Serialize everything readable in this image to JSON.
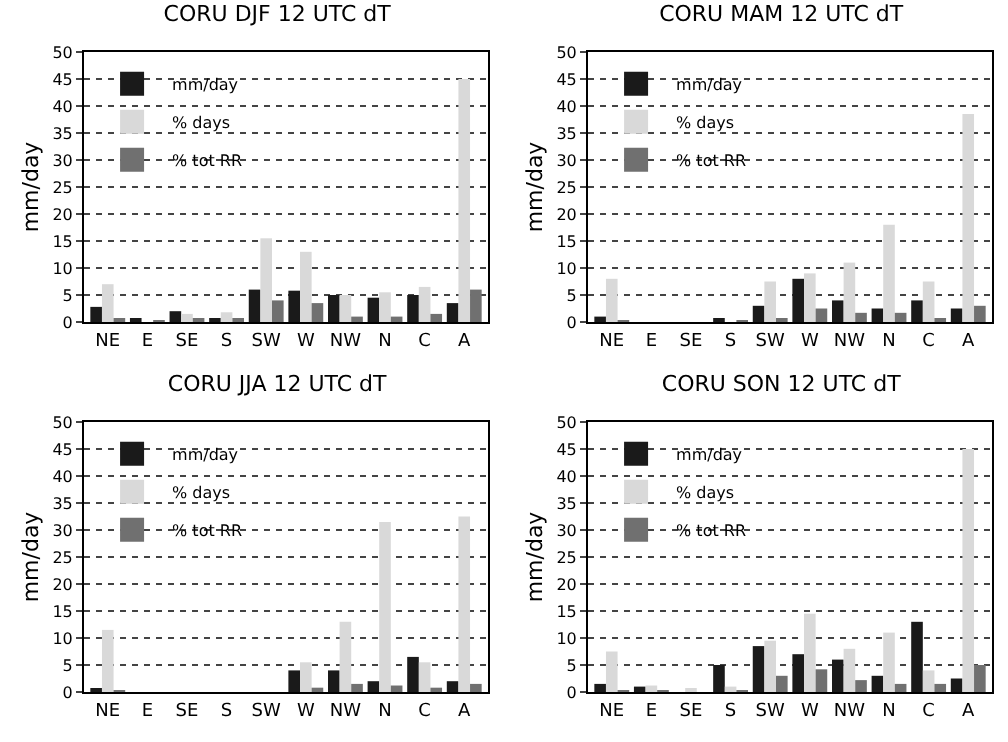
{
  "chart_data": [
    {
      "type": "bar",
      "title": "CORU DJF 12 UTC dT",
      "ylabel": "mm/day",
      "categories": [
        "NE",
        "E",
        "SE",
        "S",
        "SW",
        "W",
        "NW",
        "N",
        "C",
        "A"
      ],
      "series": [
        {
          "name": "mm/day",
          "color": "#1a1a1a",
          "values": [
            2.8,
            0.7,
            2,
            0.7,
            6,
            5.8,
            5,
            4.5,
            5,
            3.5
          ]
        },
        {
          "name": "% days",
          "color": "#d9d9d9",
          "values": [
            7,
            null,
            1.5,
            1.8,
            15.5,
            13,
            5,
            5.5,
            6.5,
            45
          ]
        },
        {
          "name": "% tot RR",
          "color": "#707070",
          "values": [
            0.7,
            0.3,
            0.5,
            0.7,
            4,
            3.5,
            1,
            1,
            1.5,
            6
          ]
        }
      ],
      "ylim": [
        0,
        50
      ],
      "yticks": [
        0,
        5,
        10,
        15,
        20,
        25,
        30,
        35,
        40,
        45,
        50
      ],
      "grid": "y",
      "legend": "top left"
    },
    {
      "type": "bar",
      "title": "CORU MAM 12 UTC dT",
      "ylabel": "mm/day",
      "categories": [
        "NE",
        "E",
        "SE",
        "S",
        "SW",
        "W",
        "NW",
        "N",
        "C",
        "A"
      ],
      "series": [
        {
          "name": "mm/day",
          "color": "#1a1a1a",
          "values": [
            1,
            0,
            0,
            0.5,
            3,
            8,
            4,
            2.5,
            4,
            2.5
          ]
        },
        {
          "name": "% days",
          "color": "#d9d9d9",
          "values": [
            8,
            0,
            0,
            null,
            7.5,
            9,
            11,
            18,
            7.5,
            38.5
          ]
        },
        {
          "name": "% tot RR",
          "color": "#707070",
          "values": [
            0.3,
            0,
            0,
            0.1,
            0.7,
            2.5,
            1.7,
            1.7,
            0.5,
            3
          ]
        }
      ],
      "ylim": [
        0,
        50
      ],
      "yticks": [
        0,
        5,
        10,
        15,
        20,
        25,
        30,
        35,
        40,
        45,
        50
      ],
      "grid": "y",
      "legend": "top left"
    },
    {
      "type": "bar",
      "title": "CORU JJA 12 UTC dT",
      "ylabel": "mm/day",
      "categories": [
        "NE",
        "E",
        "SE",
        "S",
        "SW",
        "W",
        "NW",
        "N",
        "C",
        "A"
      ],
      "series": [
        {
          "name": "mm/day",
          "color": "#1a1a1a",
          "values": [
            0.7,
            0,
            0,
            0,
            0,
            4,
            4,
            2,
            6.5,
            2
          ]
        },
        {
          "name": "% days",
          "color": "#d9d9d9",
          "values": [
            11.5,
            0,
            0,
            0,
            0,
            5.5,
            13,
            31.5,
            5.5,
            32.5
          ]
        },
        {
          "name": "% tot RR",
          "color": "#707070",
          "values": [
            0.2,
            0,
            0,
            0,
            0,
            0.8,
            1.5,
            1.2,
            0.8,
            1.5
          ]
        }
      ],
      "ylim": [
        0,
        50
      ],
      "yticks": [
        0,
        5,
        10,
        15,
        20,
        25,
        30,
        35,
        40,
        45,
        50
      ],
      "grid": "y",
      "legend": "top left"
    },
    {
      "type": "bar",
      "title": "CORU SON 12 UTC dT",
      "ylabel": "mm/day",
      "categories": [
        "NE",
        "E",
        "SE",
        "S",
        "SW",
        "W",
        "NW",
        "N",
        "C",
        "A"
      ],
      "series": [
        {
          "name": "mm/day",
          "color": "#1a1a1a",
          "values": [
            1.5,
            1,
            0,
            5,
            8.5,
            7,
            6,
            3,
            13,
            2.5
          ]
        },
        {
          "name": "% days",
          "color": "#d9d9d9",
          "values": [
            7.5,
            1.2,
            0.5,
            1,
            9.5,
            14.5,
            8,
            11,
            4,
            45
          ]
        },
        {
          "name": "% tot RR",
          "color": "#707070",
          "values": [
            0.3,
            0.2,
            0,
            0.3,
            3,
            4.2,
            2.2,
            1.5,
            1.5,
            5
          ]
        }
      ],
      "ylim": [
        0,
        50
      ],
      "yticks": [
        0,
        5,
        10,
        15,
        20,
        25,
        30,
        35,
        40,
        45,
        50
      ],
      "grid": "y",
      "legend": "top left"
    }
  ]
}
